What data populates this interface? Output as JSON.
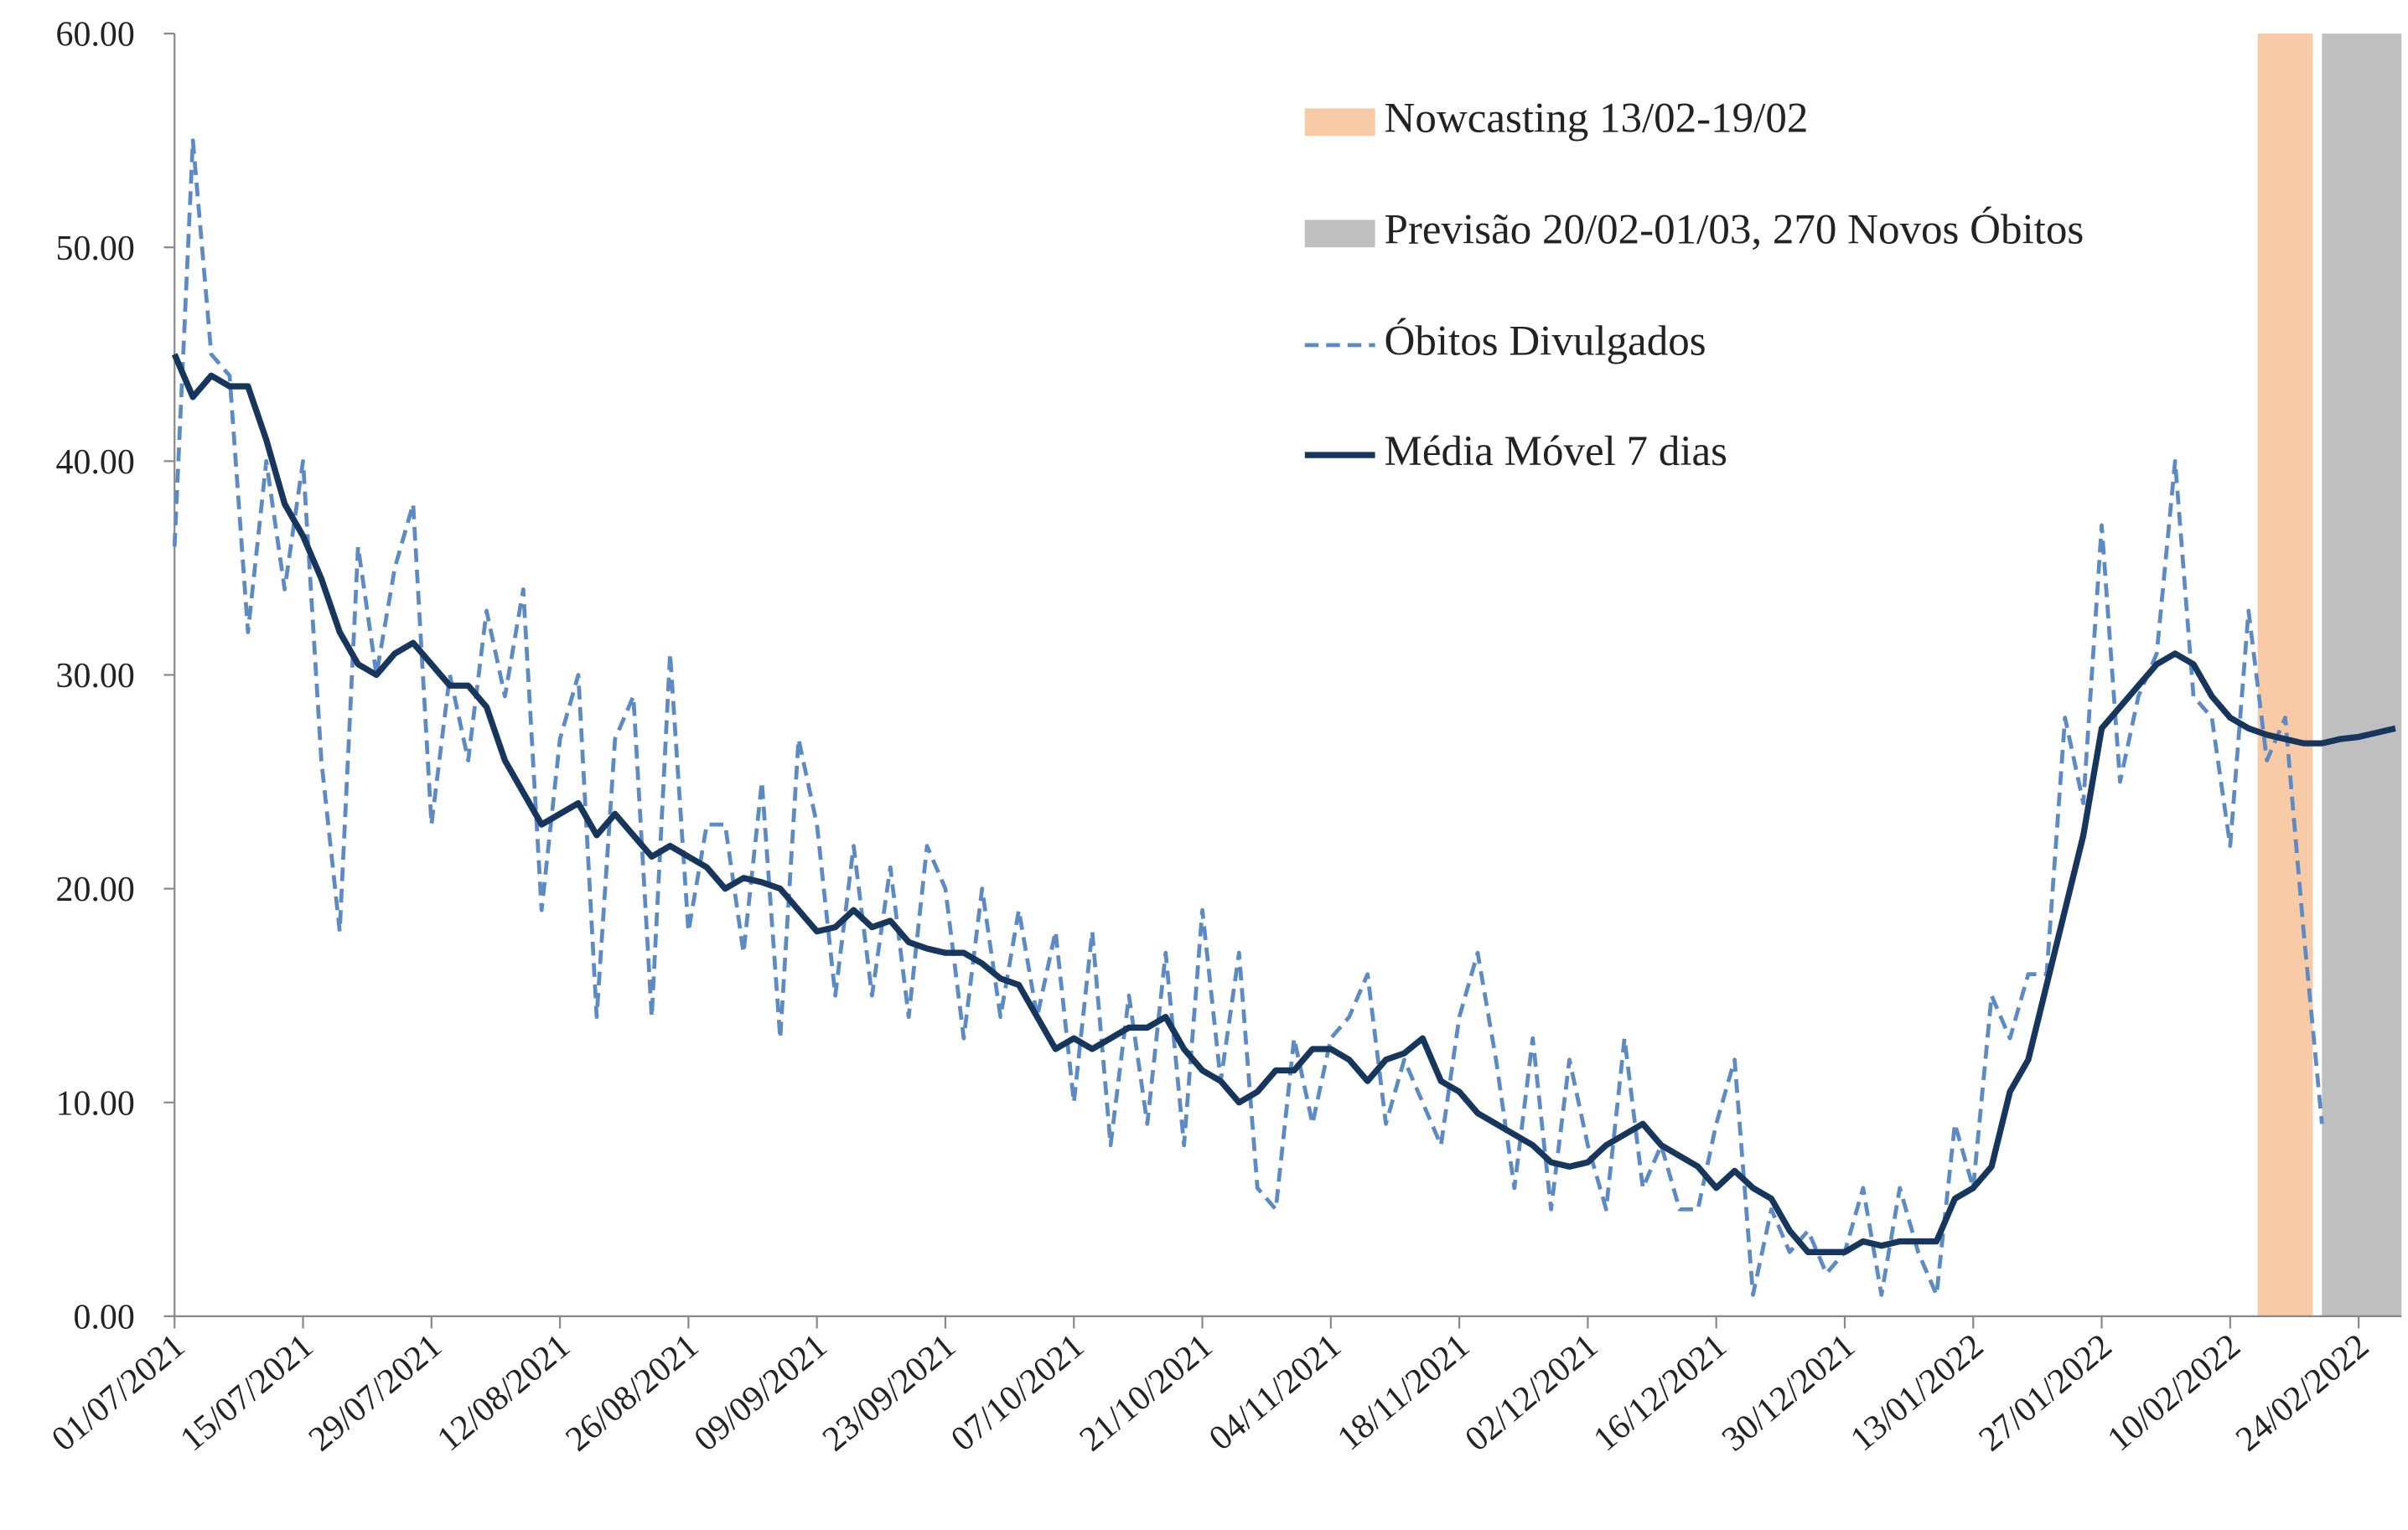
{
  "chart_data": {
    "type": "line",
    "x": [
      "01/07/2021",
      "03/07/2021",
      "05/07/2021",
      "07/07/2021",
      "09/07/2021",
      "11/07/2021",
      "13/07/2021",
      "15/07/2021",
      "17/07/2021",
      "19/07/2021",
      "21/07/2021",
      "23/07/2021",
      "25/07/2021",
      "27/07/2021",
      "29/07/2021",
      "31/07/2021",
      "02/08/2021",
      "04/08/2021",
      "06/08/2021",
      "08/08/2021",
      "10/08/2021",
      "12/08/2021",
      "14/08/2021",
      "16/08/2021",
      "18/08/2021",
      "20/08/2021",
      "22/08/2021",
      "24/08/2021",
      "26/08/2021",
      "28/08/2021",
      "30/08/2021",
      "01/09/2021",
      "03/09/2021",
      "05/09/2021",
      "07/09/2021",
      "09/09/2021",
      "11/09/2021",
      "13/09/2021",
      "15/09/2021",
      "17/09/2021",
      "19/09/2021",
      "21/09/2021",
      "23/09/2021",
      "25/09/2021",
      "27/09/2021",
      "29/09/2021",
      "01/10/2021",
      "03/10/2021",
      "05/10/2021",
      "07/10/2021",
      "09/10/2021",
      "11/10/2021",
      "13/10/2021",
      "15/10/2021",
      "17/10/2021",
      "19/10/2021",
      "21/10/2021",
      "23/10/2021",
      "25/10/2021",
      "27/10/2021",
      "29/10/2021",
      "31/10/2021",
      "02/11/2021",
      "04/11/2021",
      "06/11/2021",
      "08/11/2021",
      "10/11/2021",
      "12/11/2021",
      "14/11/2021",
      "16/11/2021",
      "18/11/2021",
      "20/11/2021",
      "22/11/2021",
      "24/11/2021",
      "26/11/2021",
      "28/11/2021",
      "30/11/2021",
      "02/12/2021",
      "04/12/2021",
      "06/12/2021",
      "08/12/2021",
      "10/12/2021",
      "12/12/2021",
      "14/12/2021",
      "16/12/2021",
      "18/12/2021",
      "20/12/2021",
      "22/12/2021",
      "24/12/2021",
      "26/12/2021",
      "28/12/2021",
      "30/12/2021",
      "01/01/2022",
      "03/01/2022",
      "05/01/2022",
      "07/01/2022",
      "09/01/2022",
      "11/01/2022",
      "13/01/2022",
      "15/01/2022",
      "17/01/2022",
      "19/01/2022",
      "21/01/2022",
      "23/01/2022",
      "25/01/2022",
      "27/01/2022",
      "29/01/2022",
      "31/01/2022",
      "02/02/2022",
      "04/02/2022",
      "06/02/2022",
      "08/02/2022",
      "10/02/2022",
      "12/02/2022",
      "14/02/2022",
      "16/02/2022",
      "18/02/2022",
      "20/02/2022",
      "22/02/2022",
      "24/02/2022",
      "26/02/2022",
      "28/02/2022"
    ],
    "series": [
      {
        "name": "Óbitos Divulgados",
        "color": "#5b8ac4",
        "dashed": true,
        "values": [
          36,
          55,
          45,
          44,
          32,
          40,
          34,
          40,
          26,
          18,
          36,
          30,
          35,
          38,
          23,
          30,
          26,
          33,
          29,
          34,
          19,
          27,
          30,
          14,
          27,
          29,
          14,
          31,
          18,
          23,
          23,
          17,
          25,
          13,
          27,
          23,
          15,
          22,
          15,
          21,
          14,
          22,
          20,
          13,
          20,
          14,
          19,
          14,
          18,
          10,
          18,
          8,
          15,
          9,
          17,
          8,
          19,
          11,
          17,
          6,
          5,
          13,
          9,
          13,
          14,
          16,
          9,
          12,
          10,
          8,
          14,
          17,
          12,
          6,
          13,
          5,
          12,
          8,
          5,
          13,
          6,
          8,
          5,
          5,
          9,
          12,
          1,
          5,
          3,
          4,
          2,
          3,
          6,
          1,
          6,
          3,
          1,
          9,
          6,
          15,
          13,
          16,
          16,
          28,
          24,
          37,
          25,
          29,
          31,
          40,
          29,
          28,
          22,
          33,
          26,
          28,
          18,
          9,
          null,
          null,
          null,
          null
        ]
      },
      {
        "name": "Média Móvel 7 dias",
        "color": "#17365d",
        "dashed": false,
        "values": [
          45,
          43,
          44,
          43.5,
          43.5,
          41,
          38,
          36.5,
          34.5,
          32,
          30.5,
          30,
          31,
          31.5,
          30.5,
          29.5,
          29.5,
          28.5,
          26,
          24.5,
          23,
          23.5,
          24,
          22.5,
          23.5,
          22.5,
          21.5,
          22,
          21.5,
          21,
          20,
          20.5,
          20.3,
          20,
          19,
          18,
          18.2,
          19,
          18.2,
          18.5,
          17.5,
          17.2,
          17,
          17,
          16.5,
          15.8,
          15.5,
          14,
          12.5,
          13,
          12.5,
          13,
          13.5,
          13.5,
          14,
          12.5,
          11.5,
          11,
          10,
          10.5,
          11.5,
          11.5,
          12.5,
          12.5,
          12,
          11,
          12,
          12.3,
          13,
          11,
          10.5,
          9.5,
          9,
          8.5,
          8,
          7.2,
          7,
          7.2,
          8,
          8.5,
          9,
          8,
          7.5,
          7,
          6,
          6.8,
          6,
          5.5,
          4,
          3,
          3,
          3,
          3.5,
          3.3,
          3.5,
          3.5,
          3.5,
          5.5,
          6,
          7,
          10.5,
          12,
          15.5,
          19,
          22.5,
          27.5,
          28.5,
          29.5,
          30.5,
          31,
          30.5,
          29,
          28,
          27.5,
          27.2,
          27,
          26.8,
          26.8,
          27,
          27.1,
          27.3,
          27.5
        ]
      }
    ],
    "bands": [
      {
        "name": "Nowcasting 13/02-19/02",
        "color": "#f8cba6",
        "from": "13/02/2022",
        "to": "19/02/2022"
      },
      {
        "name": "Previsão 20/02-01/03, 270 Novos Óbitos",
        "color": "#bfbfbf",
        "from": "20/02/2022",
        "to": "01/03/2022"
      }
    ],
    "xlim": [
      "01/07/2021",
      "01/03/2022"
    ],
    "xticks": [
      "01/07/2021",
      "15/07/2021",
      "29/07/2021",
      "12/08/2021",
      "26/08/2021",
      "09/09/2021",
      "23/09/2021",
      "07/10/2021",
      "21/10/2021",
      "04/11/2021",
      "18/11/2021",
      "02/12/2021",
      "16/12/2021",
      "30/12/2021",
      "13/01/2022",
      "27/01/2022",
      "10/02/2022",
      "24/02/2022"
    ],
    "ylim": [
      0,
      60
    ],
    "yticks": [
      {
        "value": 0,
        "label": "0.00"
      },
      {
        "value": 10,
        "label": "10.00"
      },
      {
        "value": 20,
        "label": "20.00"
      },
      {
        "value": 30,
        "label": "30.00"
      },
      {
        "value": 40,
        "label": "40.00"
      },
      {
        "value": 50,
        "label": "50.00"
      },
      {
        "value": 60,
        "label": "60.00"
      }
    ],
    "legend": "upper right"
  }
}
